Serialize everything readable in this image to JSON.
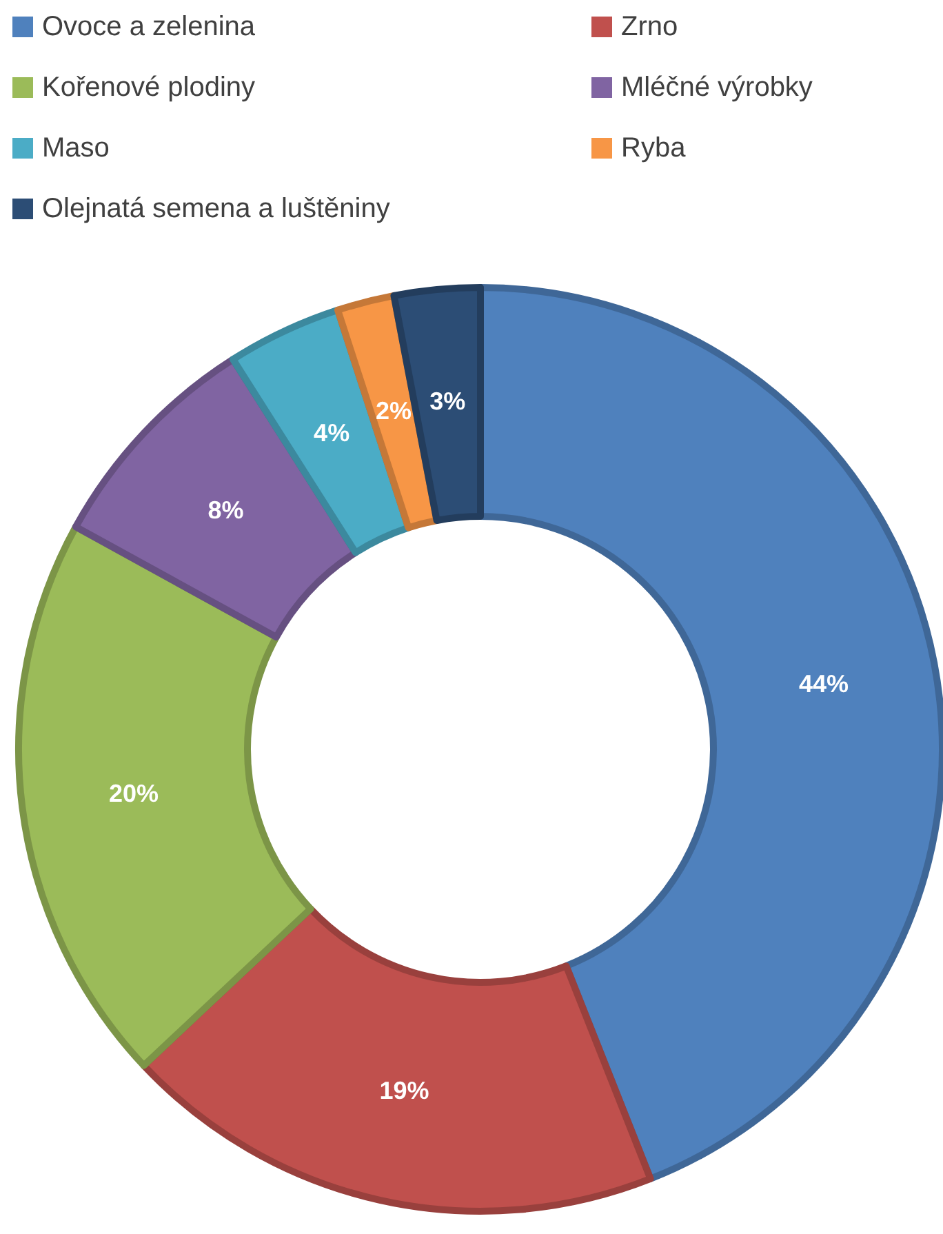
{
  "chart_data": {
    "type": "donut",
    "categories": [
      "Ovoce a zelenina",
      "Zrno",
      "Kořenové plodiny",
      "Mléčné výrobky",
      "Maso",
      "Ryba",
      "Olejnatá semena a luštěniny"
    ],
    "values": [
      44,
      19,
      20,
      8,
      4,
      2,
      3
    ],
    "colors": [
      "#4f81bd",
      "#c0504d",
      "#9bbb59",
      "#8064a2",
      "#4bacc6",
      "#f79646",
      "#2c4d75"
    ],
    "value_labels": [
      "44%",
      "19%",
      "20%",
      "8%",
      "4%",
      "2%",
      "3%"
    ],
    "legend": "top"
  }
}
